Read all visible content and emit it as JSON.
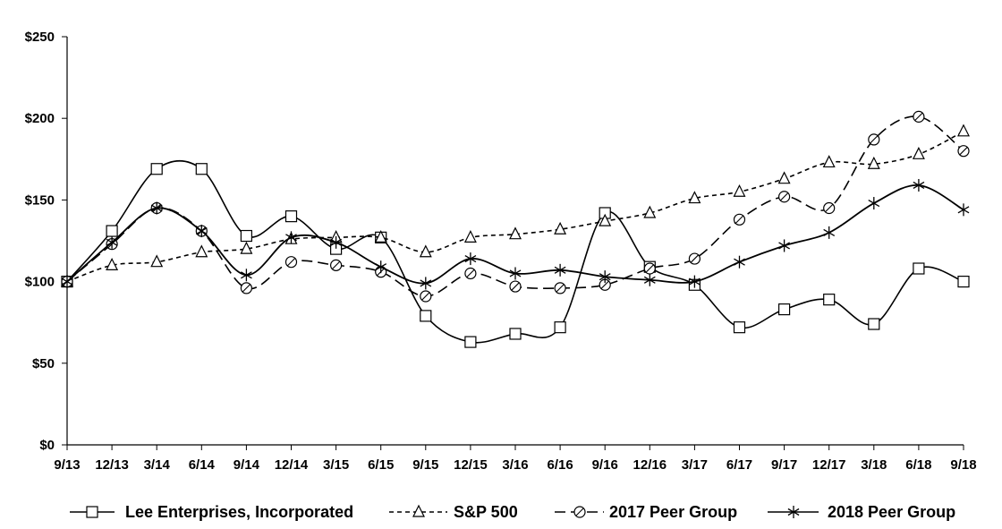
{
  "chart_data": {
    "type": "line",
    "title": "",
    "xlabel": "",
    "ylabel": "",
    "ylim": [
      0,
      250
    ],
    "y_ticks": [
      0,
      50,
      100,
      150,
      200,
      250
    ],
    "y_tick_labels": [
      "$0",
      "$50",
      "$100",
      "$150",
      "$200",
      "$250"
    ],
    "grid": false,
    "legend_position": "bottom",
    "categories": [
      "9/13",
      "12/13",
      "3/14",
      "6/14",
      "9/14",
      "12/14",
      "3/15",
      "6/15",
      "9/15",
      "12/15",
      "3/16",
      "6/16",
      "9/16",
      "12/16",
      "3/17",
      "6/17",
      "9/17",
      "12/17",
      "3/18",
      "6/18",
      "9/18"
    ],
    "series": [
      {
        "name": "Lee Enterprises, Incorporated",
        "marker": "square",
        "dash": "solid",
        "values": [
          100,
          131,
          169,
          169,
          128,
          140,
          120,
          127,
          79,
          63,
          68,
          72,
          142,
          109,
          98,
          72,
          83,
          89,
          74,
          108,
          100
        ]
      },
      {
        "name": "S&P 500",
        "marker": "triangle",
        "dash": "short",
        "values": [
          100,
          110,
          112,
          118,
          120,
          126,
          127,
          127,
          118,
          127,
          129,
          132,
          137,
          142,
          151,
          155,
          163,
          173,
          172,
          178,
          192
        ]
      },
      {
        "name": "2017 Peer Group",
        "marker": "circle",
        "dash": "long",
        "values": [
          100,
          123,
          145,
          131,
          96,
          112,
          110,
          106,
          91,
          105,
          97,
          96,
          98,
          108,
          114,
          138,
          152,
          145,
          187,
          201,
          180
        ]
      },
      {
        "name": "2018 Peer Group",
        "marker": "star",
        "dash": "solid",
        "values": [
          100,
          124,
          145,
          131,
          104,
          127,
          124,
          109,
          99,
          114,
          105,
          107,
          103,
          101,
          100,
          112,
          122,
          130,
          148,
          159,
          144
        ]
      }
    ]
  }
}
